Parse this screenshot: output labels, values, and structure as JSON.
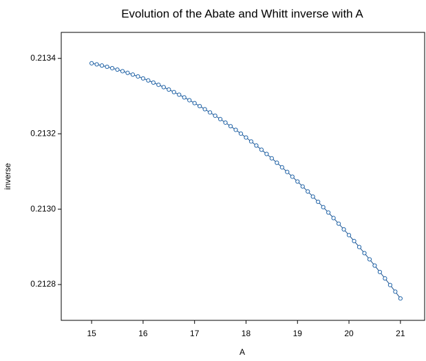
{
  "chart_data": {
    "type": "line",
    "title": "Evolution of the Abate and Whitt inverse with A",
    "x_label": "A",
    "y_label": "inverse",
    "xlim": [
      14.41,
      21.47
    ],
    "ylim": [
      0.212705,
      0.213469
    ],
    "xticks": [
      15,
      16,
      17,
      18,
      19,
      20,
      21
    ],
    "yticks": [
      0.2128,
      {
        "value": 0.213,
        "label": "0.2130"
      },
      0.2132,
      0.2134
    ],
    "grid": false,
    "line_color": "#1a4f8a",
    "marker_color": "#1f63a8",
    "marker": "open-circle",
    "x": [
      15,
      15.1,
      15.2,
      15.3,
      15.4,
      15.5,
      15.6,
      15.7,
      15.8,
      15.9,
      16,
      16.1,
      16.2,
      16.3,
      16.4,
      16.5,
      16.6,
      16.7,
      16.8,
      16.9,
      17,
      17.1,
      17.2,
      17.3,
      17.4,
      17.5,
      17.6,
      17.7,
      17.8,
      17.9,
      18,
      18.1,
      18.2,
      18.3,
      18.4,
      18.5,
      18.6,
      18.7,
      18.8,
      18.9,
      19,
      19.1,
      19.2,
      19.3,
      19.4,
      19.5,
      19.6,
      19.7,
      19.8,
      19.9,
      20,
      20.1,
      20.2,
      20.3,
      20.4,
      20.5,
      20.6,
      20.7,
      20.8,
      20.9,
      21
    ],
    "values": [
      0.213387,
      0.2133841,
      0.213381,
      0.2133777,
      0.213374,
      0.2133702,
      0.213366,
      0.2133616,
      0.213357,
      0.2133521,
      0.2133469,
      0.2133415,
      0.2133358,
      0.2133299,
      0.2133237,
      0.2133173,
      0.2133106,
      0.2133037,
      0.2132965,
      0.213289,
      0.2132813,
      0.2132733,
      0.2132651,
      0.2132566,
      0.2132479,
      0.2132389,
      0.2132296,
      0.2132201,
      0.2132104,
      0.2132004,
      0.2131901,
      0.2131796,
      0.2131688,
      0.2131577,
      0.2131464,
      0.2131349,
      0.2131231,
      0.213111,
      0.2130987,
      0.2130861,
      0.2130733,
      0.2130602,
      0.2130469,
      0.2130333,
      0.2130195,
      0.2130053,
      0.212991,
      0.2129764,
      0.2129615,
      0.2129464,
      0.212931,
      0.2129154,
      0.2128995,
      0.2128833,
      0.2128669,
      0.2128503,
      0.2128333,
      0.2128162,
      0.2127987,
      0.2127811,
      0.2127631
    ]
  }
}
